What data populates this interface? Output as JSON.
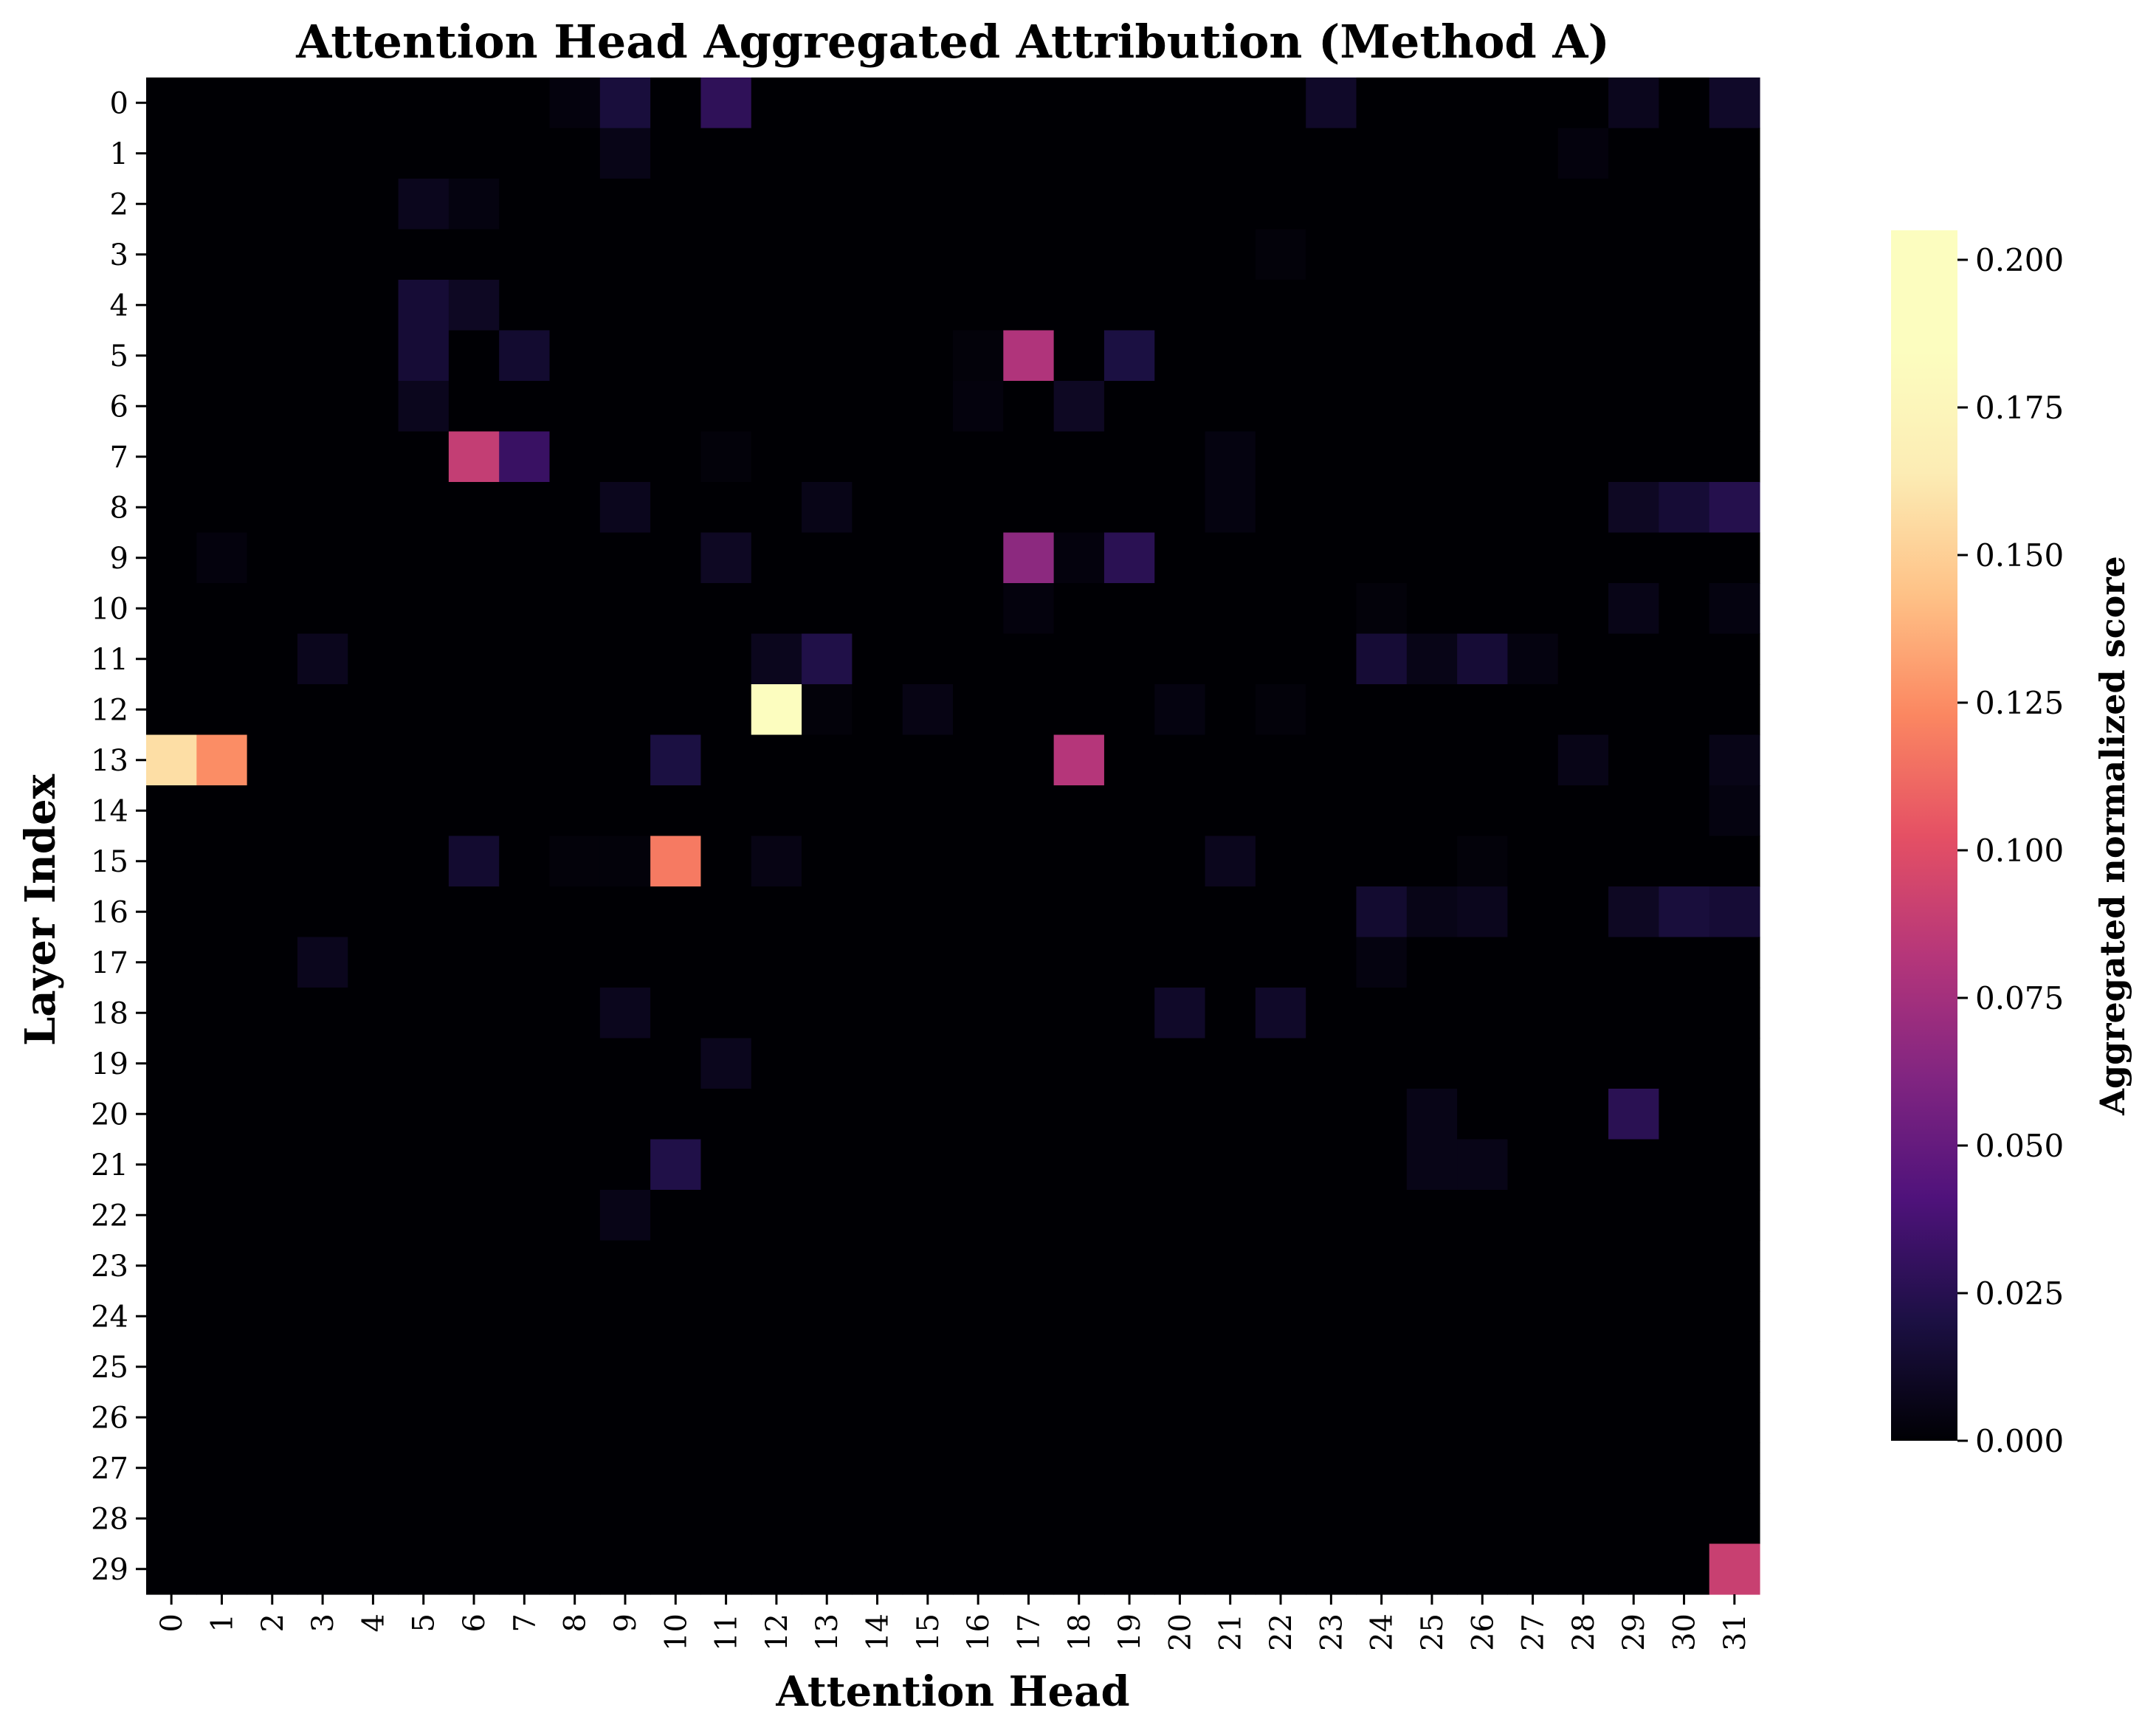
{
  "chart_data": {
    "type": "heatmap",
    "title": "Attention Head Aggregated Attribution (Method A)",
    "xlabel": "Attention Head",
    "ylabel": "Layer Index",
    "x_categories": [
      "0",
      "1",
      "2",
      "3",
      "4",
      "5",
      "6",
      "7",
      "8",
      "9",
      "10",
      "11",
      "12",
      "13",
      "14",
      "15",
      "16",
      "17",
      "18",
      "19",
      "20",
      "21",
      "22",
      "23",
      "24",
      "25",
      "26",
      "27",
      "28",
      "29",
      "30",
      "31"
    ],
    "y_categories": [
      "0",
      "1",
      "2",
      "3",
      "4",
      "5",
      "6",
      "7",
      "8",
      "9",
      "10",
      "11",
      "12",
      "13",
      "14",
      "15",
      "16",
      "17",
      "18",
      "19",
      "20",
      "21",
      "22",
      "23",
      "24",
      "25",
      "26",
      "27",
      "28",
      "29"
    ],
    "colormap": "magma",
    "vmin": 0.0,
    "vmax": 0.205,
    "colorbar": {
      "label": "Aggregated normalized score",
      "ticks": [
        "0.000",
        "0.025",
        "0.050",
        "0.075",
        "0.100",
        "0.125",
        "0.150",
        "0.175",
        "0.200"
      ],
      "tick_values": [
        0.0,
        0.025,
        0.05,
        0.075,
        0.1,
        0.125,
        0.15,
        0.175,
        0.2
      ]
    },
    "nonzero_cells": [
      {
        "layer": 0,
        "head": 8,
        "value": 0.003
      },
      {
        "layer": 0,
        "head": 9,
        "value": 0.018
      },
      {
        "layer": 0,
        "head": 11,
        "value": 0.028
      },
      {
        "layer": 0,
        "head": 23,
        "value": 0.012
      },
      {
        "layer": 0,
        "head": 29,
        "value": 0.008
      },
      {
        "layer": 0,
        "head": 31,
        "value": 0.012
      },
      {
        "layer": 1,
        "head": 9,
        "value": 0.006
      },
      {
        "layer": 1,
        "head": 28,
        "value": 0.003
      },
      {
        "layer": 2,
        "head": 5,
        "value": 0.008
      },
      {
        "layer": 2,
        "head": 6,
        "value": 0.004
      },
      {
        "layer": 3,
        "head": 22,
        "value": 0.002
      },
      {
        "layer": 4,
        "head": 5,
        "value": 0.016
      },
      {
        "layer": 4,
        "head": 6,
        "value": 0.01
      },
      {
        "layer": 5,
        "head": 5,
        "value": 0.016
      },
      {
        "layer": 5,
        "head": 7,
        "value": 0.014
      },
      {
        "layer": 5,
        "head": 16,
        "value": 0.002
      },
      {
        "layer": 5,
        "head": 17,
        "value": 0.08
      },
      {
        "layer": 5,
        "head": 19,
        "value": 0.02
      },
      {
        "layer": 6,
        "head": 5,
        "value": 0.008
      },
      {
        "layer": 6,
        "head": 16,
        "value": 0.003
      },
      {
        "layer": 6,
        "head": 18,
        "value": 0.01
      },
      {
        "layer": 7,
        "head": 6,
        "value": 0.088
      },
      {
        "layer": 7,
        "head": 7,
        "value": 0.032
      },
      {
        "layer": 7,
        "head": 11,
        "value": 0.002
      },
      {
        "layer": 7,
        "head": 21,
        "value": 0.004
      },
      {
        "layer": 8,
        "head": 9,
        "value": 0.008
      },
      {
        "layer": 8,
        "head": 13,
        "value": 0.006
      },
      {
        "layer": 8,
        "head": 21,
        "value": 0.004
      },
      {
        "layer": 8,
        "head": 29,
        "value": 0.01
      },
      {
        "layer": 8,
        "head": 30,
        "value": 0.016
      },
      {
        "layer": 8,
        "head": 31,
        "value": 0.024
      },
      {
        "layer": 9,
        "head": 1,
        "value": 0.003
      },
      {
        "layer": 9,
        "head": 11,
        "value": 0.01
      },
      {
        "layer": 9,
        "head": 17,
        "value": 0.066
      },
      {
        "layer": 9,
        "head": 18,
        "value": 0.003
      },
      {
        "layer": 9,
        "head": 19,
        "value": 0.026
      },
      {
        "layer": 10,
        "head": 17,
        "value": 0.003
      },
      {
        "layer": 10,
        "head": 24,
        "value": 0.002
      },
      {
        "layer": 10,
        "head": 29,
        "value": 0.006
      },
      {
        "layer": 10,
        "head": 31,
        "value": 0.004
      },
      {
        "layer": 11,
        "head": 3,
        "value": 0.008
      },
      {
        "layer": 11,
        "head": 12,
        "value": 0.008
      },
      {
        "layer": 11,
        "head": 13,
        "value": 0.022
      },
      {
        "layer": 11,
        "head": 24,
        "value": 0.016
      },
      {
        "layer": 11,
        "head": 25,
        "value": 0.006
      },
      {
        "layer": 11,
        "head": 26,
        "value": 0.016
      },
      {
        "layer": 11,
        "head": 27,
        "value": 0.004
      },
      {
        "layer": 12,
        "head": 12,
        "value": 0.205
      },
      {
        "layer": 12,
        "head": 13,
        "value": 0.002
      },
      {
        "layer": 12,
        "head": 15,
        "value": 0.005
      },
      {
        "layer": 12,
        "head": 20,
        "value": 0.004
      },
      {
        "layer": 12,
        "head": 22,
        "value": 0.002
      },
      {
        "layer": 13,
        "head": 0,
        "value": 0.157
      },
      {
        "layer": 13,
        "head": 1,
        "value": 0.125
      },
      {
        "layer": 13,
        "head": 10,
        "value": 0.02
      },
      {
        "layer": 13,
        "head": 18,
        "value": 0.082
      },
      {
        "layer": 13,
        "head": 28,
        "value": 0.006
      },
      {
        "layer": 13,
        "head": 31,
        "value": 0.006
      },
      {
        "layer": 14,
        "head": 31,
        "value": 0.004
      },
      {
        "layer": 15,
        "head": 6,
        "value": 0.014
      },
      {
        "layer": 15,
        "head": 8,
        "value": 0.002
      },
      {
        "layer": 15,
        "head": 9,
        "value": 0.002
      },
      {
        "layer": 15,
        "head": 10,
        "value": 0.118
      },
      {
        "layer": 15,
        "head": 12,
        "value": 0.005
      },
      {
        "layer": 15,
        "head": 21,
        "value": 0.008
      },
      {
        "layer": 15,
        "head": 26,
        "value": 0.002
      },
      {
        "layer": 16,
        "head": 24,
        "value": 0.014
      },
      {
        "layer": 16,
        "head": 25,
        "value": 0.006
      },
      {
        "layer": 16,
        "head": 26,
        "value": 0.008
      },
      {
        "layer": 16,
        "head": 29,
        "value": 0.01
      },
      {
        "layer": 16,
        "head": 30,
        "value": 0.018
      },
      {
        "layer": 16,
        "head": 31,
        "value": 0.016
      },
      {
        "layer": 17,
        "head": 3,
        "value": 0.008
      },
      {
        "layer": 17,
        "head": 24,
        "value": 0.004
      },
      {
        "layer": 18,
        "head": 9,
        "value": 0.008
      },
      {
        "layer": 18,
        "head": 20,
        "value": 0.012
      },
      {
        "layer": 18,
        "head": 22,
        "value": 0.012
      },
      {
        "layer": 19,
        "head": 11,
        "value": 0.008
      },
      {
        "layer": 20,
        "head": 25,
        "value": 0.006
      },
      {
        "layer": 20,
        "head": 29,
        "value": 0.026
      },
      {
        "layer": 21,
        "head": 10,
        "value": 0.022
      },
      {
        "layer": 21,
        "head": 25,
        "value": 0.006
      },
      {
        "layer": 21,
        "head": 26,
        "value": 0.006
      },
      {
        "layer": 22,
        "head": 9,
        "value": 0.006
      },
      {
        "layer": 29,
        "head": 31,
        "value": 0.09
      }
    ]
  }
}
